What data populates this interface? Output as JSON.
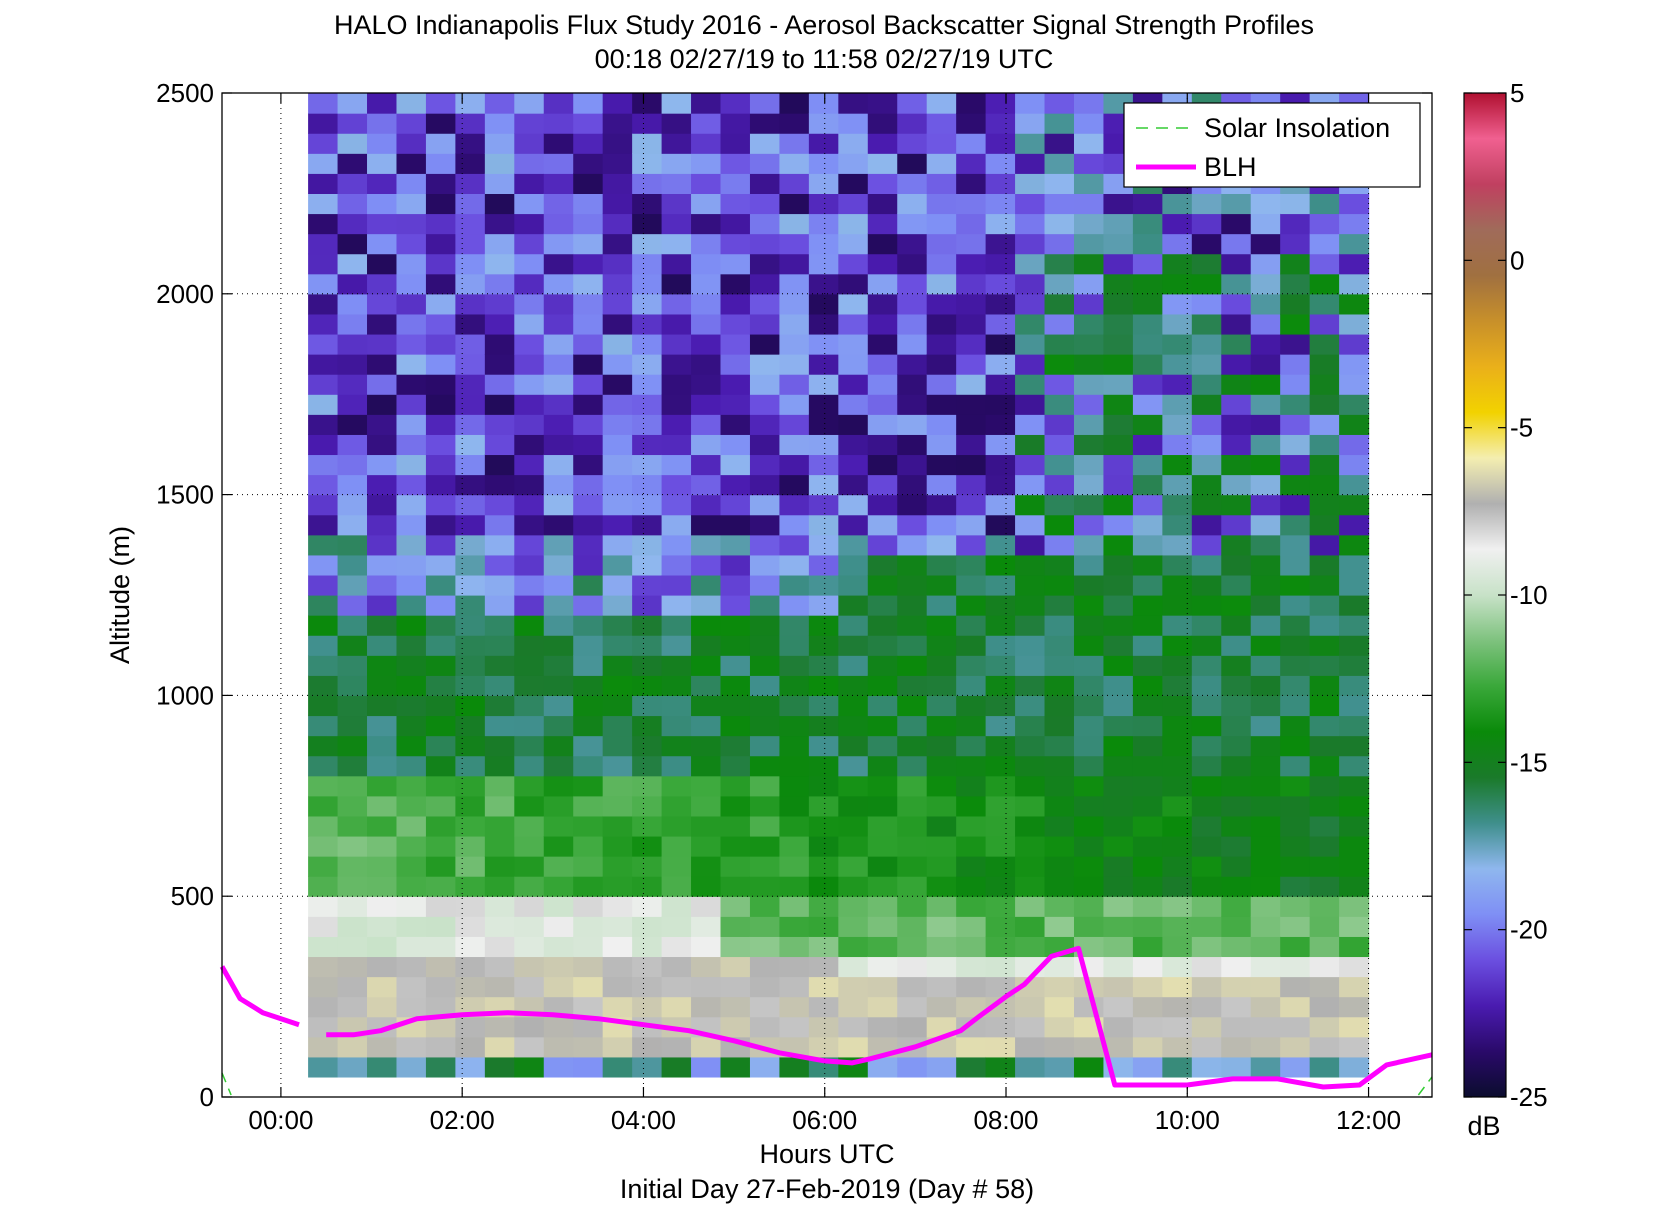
{
  "chart_data": {
    "type": "heatmap",
    "title": "HALO Indianapolis Flux Study 2016 - Aerosol Backscatter Signal Strength Profiles",
    "subtitle": "00:18 02/27/19 to 11:58 02/27/19  UTC",
    "xlabel": "Hours UTC",
    "xlabel2": "Initial Day 27-Feb-2019 (Day # 58)",
    "ylabel": "Altitude (m)",
    "x_ticks": [
      "00:00",
      "02:00",
      "04:00",
      "06:00",
      "08:00",
      "10:00",
      "12:00"
    ],
    "x_tick_values": [
      0,
      2,
      4,
      6,
      8,
      10,
      12
    ],
    "xlim": [
      -0.65,
      12.7
    ],
    "y_ticks": [
      "0",
      "500",
      "1000",
      "1500",
      "2000",
      "2500"
    ],
    "y_tick_values": [
      0,
      500,
      1000,
      1500,
      2000,
      2500
    ],
    "ylim": [
      0,
      2500
    ],
    "grid": "dotted",
    "heatmap": {
      "x_start": 0.3,
      "x_end": 12.0,
      "x_bins": 36,
      "y_start": 50,
      "y_end": 2500,
      "y_bins": 49
    },
    "colorbar": {
      "label": "dB",
      "ticks": [
        "5",
        "0",
        "-5",
        "-10",
        "-15",
        "-20",
        "-25"
      ],
      "tick_values": [
        5,
        0,
        -5,
        -10,
        -15,
        -20,
        -25
      ],
      "range": [
        -25,
        5
      ],
      "colors": [
        "#0b0c2e",
        "#2a0a6a",
        "#4a1bb0",
        "#6b4fe0",
        "#7f8ff5",
        "#8fb7ee",
        "#3f8f8c",
        "#1a7a2a",
        "#0a8a0a",
        "#3aa83a",
        "#7ec27e",
        "#c8e2c8",
        "#f0f0f0",
        "#b0b0b0",
        "#f4eeb0",
        "#f2d200",
        "#eab01a",
        "#c8902a",
        "#a07040",
        "#a06b5a",
        "#c04060",
        "#f06090",
        "#b01030"
      ]
    },
    "legend": {
      "placement": "top-right",
      "entries": [
        {
          "name": "Solar Insolation",
          "color": "#33cc33",
          "style": "dashed"
        },
        {
          "name": "BLH",
          "color": "#ff00ff",
          "style": "solid"
        }
      ]
    },
    "series": [
      {
        "name": "BLH",
        "color": "#ff00ff",
        "segments": [
          {
            "x": [
              -0.65,
              -0.45,
              -0.2,
              0.2
            ],
            "y": [
              325,
              245,
              210,
              180
            ]
          },
          {
            "x": [
              0.5,
              0.8,
              1.1,
              1.5,
              2.0,
              2.5,
              3.0,
              3.5,
              4.0,
              4.5,
              5.0,
              5.5,
              6.0,
              6.3,
              6.5,
              7.0,
              7.5,
              7.7,
              8.0,
              8.2,
              8.5,
              8.8,
              9.2,
              9.5,
              10.0,
              10.5,
              11.0,
              11.5,
              11.9,
              12.2,
              12.7
            ],
            "y": [
              155,
              155,
              165,
              195,
              205,
              210,
              205,
              195,
              180,
              165,
              140,
              110,
              90,
              85,
              95,
              125,
              165,
              200,
              250,
              280,
              350,
              370,
              30,
              30,
              30,
              45,
              45,
              25,
              30,
              80,
              105
            ]
          }
        ]
      },
      {
        "name": "Solar Insolation",
        "color": "#33cc33",
        "segments": [
          {
            "x": [
              -0.65,
              -0.55
            ],
            "y": [
              60,
              5
            ]
          },
          {
            "x": [
              12.55,
              12.7
            ],
            "y": [
              5,
              50
            ]
          }
        ]
      }
    ]
  }
}
